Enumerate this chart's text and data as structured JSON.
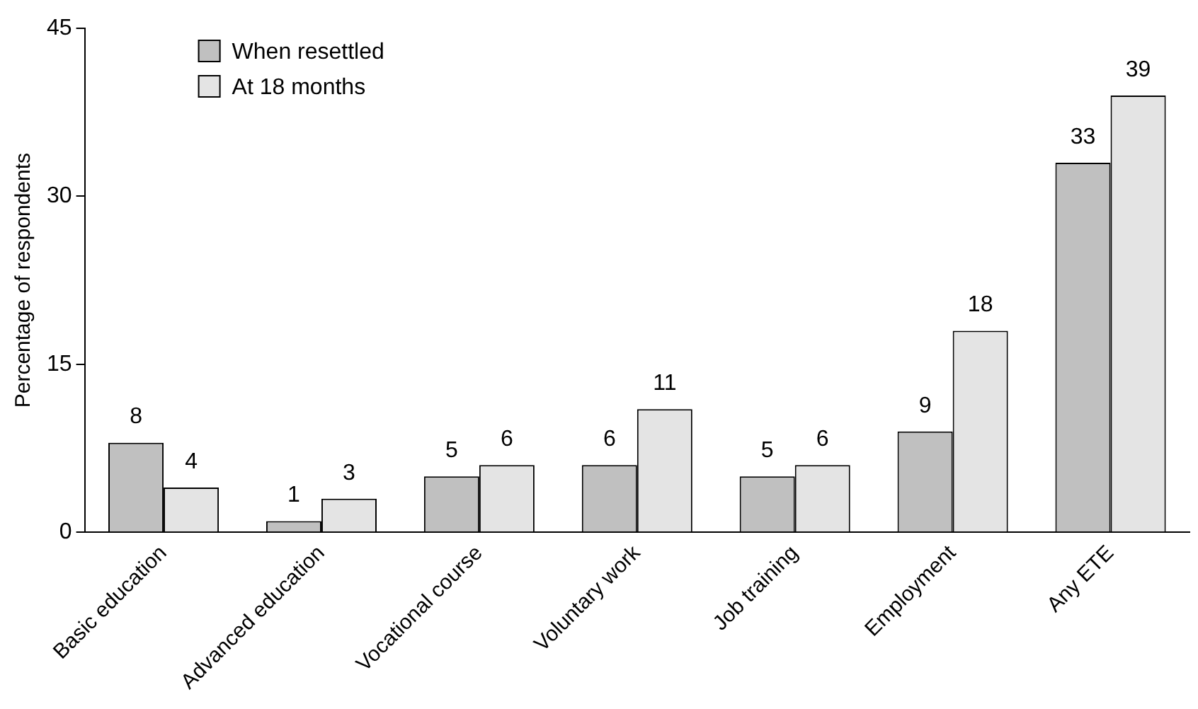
{
  "chart_data": {
    "type": "bar",
    "ylabel": "Percentage of respondents",
    "categories": [
      "Basic education",
      "Advanced education",
      "Vocational course",
      "Voluntary work",
      "Job training",
      "Employment",
      "Any ETE"
    ],
    "series": [
      {
        "name": "When resettled",
        "color": "#c0c0c0",
        "values": [
          8,
          1,
          5,
          6,
          5,
          9,
          33
        ]
      },
      {
        "name": "At 18 months",
        "color": "#e4e4e4",
        "values": [
          4,
          3,
          6,
          11,
          6,
          18,
          39
        ]
      }
    ],
    "ylim": [
      0,
      45
    ],
    "yticks": [
      0,
      15,
      30,
      45
    ],
    "grid": false,
    "legend": "top left",
    "data_labels": true
  }
}
